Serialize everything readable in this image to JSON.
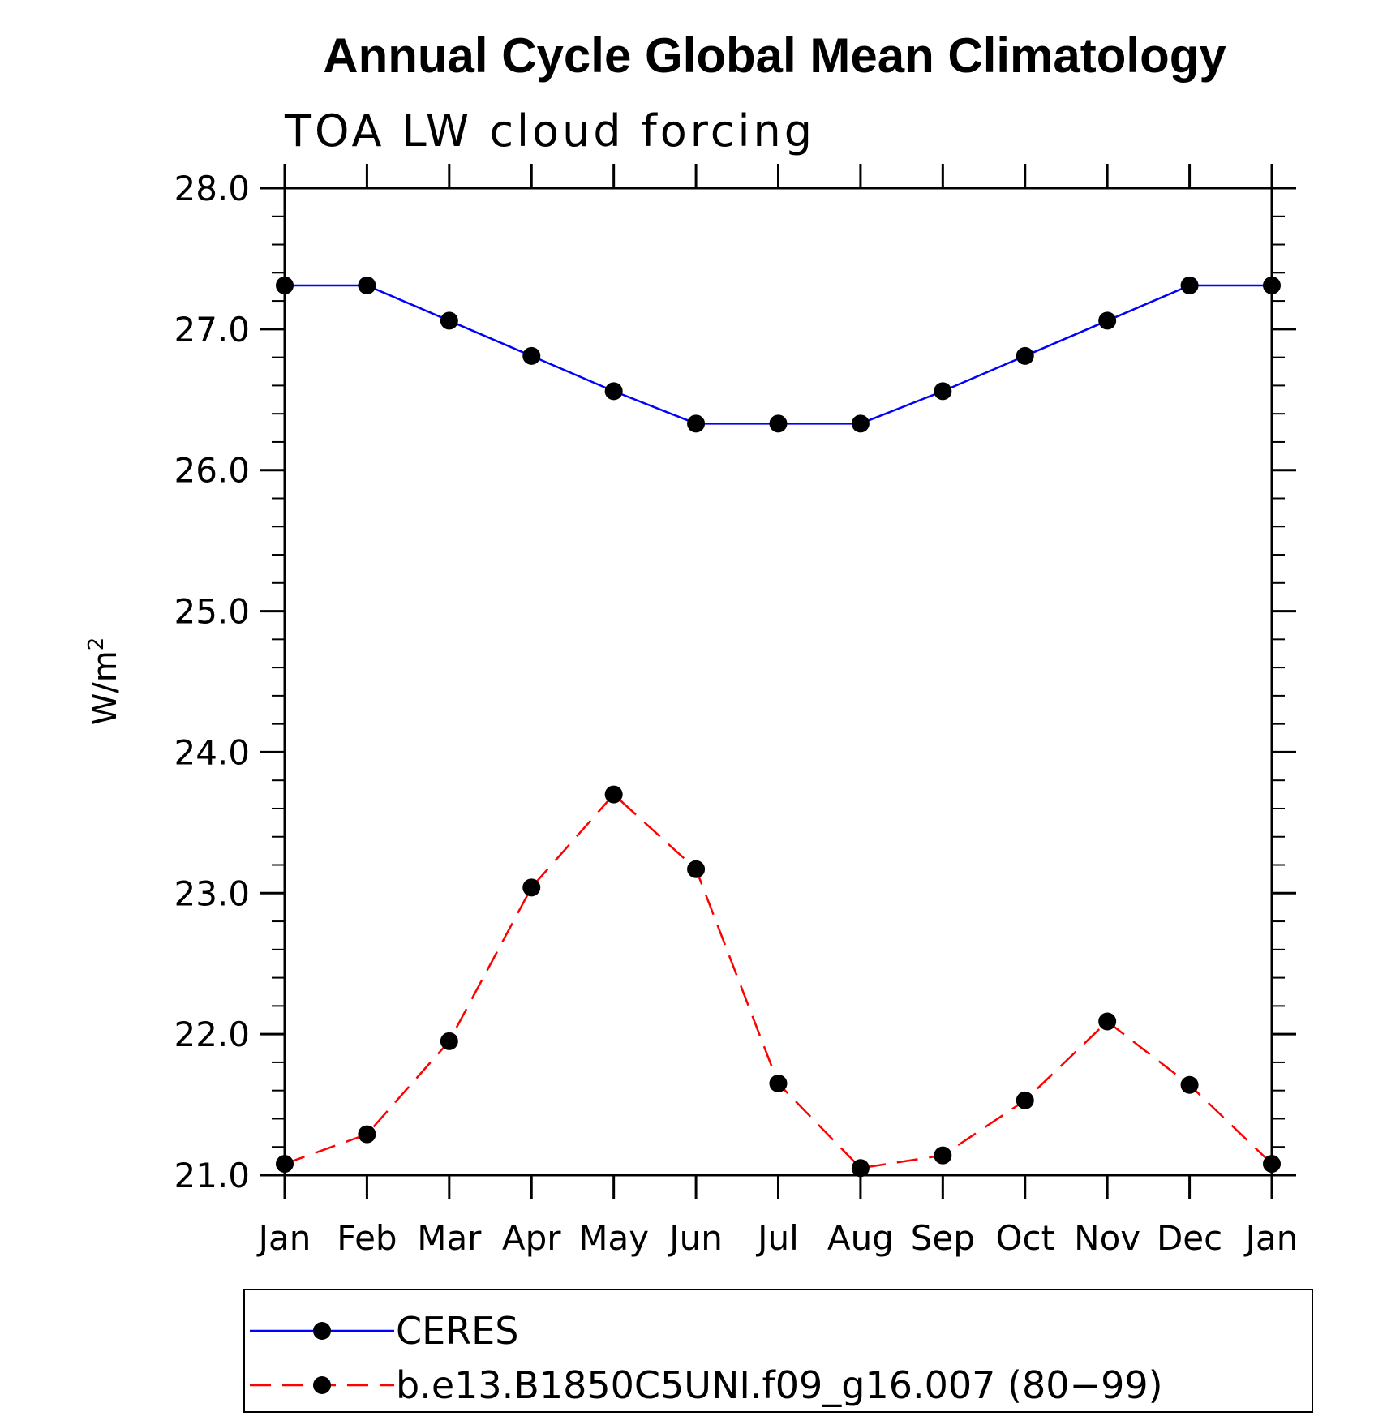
{
  "chart_data": {
    "type": "line",
    "title": "Annual Cycle Global Mean Climatology",
    "subtitle": "TOA LW cloud forcing",
    "xlabel": "",
    "ylabel": "W/m",
    "ylabel_superscript": "2",
    "categories": [
      "Jan",
      "Feb",
      "Mar",
      "Apr",
      "May",
      "Jun",
      "Jul",
      "Aug",
      "Sep",
      "Oct",
      "Nov",
      "Dec",
      "Jan"
    ],
    "ylim": [
      21.0,
      28.0
    ],
    "yticks": [
      "21.0",
      "22.0",
      "23.0",
      "24.0",
      "25.0",
      "26.0",
      "27.0",
      "28.0"
    ],
    "grid": false,
    "legend_position": "bottom",
    "series": [
      {
        "name": "CERES",
        "color": "#0000ff",
        "dash": "solid",
        "values": [
          27.31,
          27.31,
          27.06,
          26.81,
          26.56,
          26.33,
          26.33,
          26.33,
          26.56,
          26.81,
          27.06,
          27.31,
          27.31
        ]
      },
      {
        "name": "b.e13.B1850C5UNI.f09_g16.007 (80−99)",
        "color": "#ff0000",
        "dash": "dashed",
        "values": [
          21.08,
          21.29,
          21.95,
          23.04,
          23.7,
          23.17,
          21.65,
          21.05,
          21.14,
          21.53,
          22.09,
          21.64,
          21.08
        ]
      }
    ]
  }
}
